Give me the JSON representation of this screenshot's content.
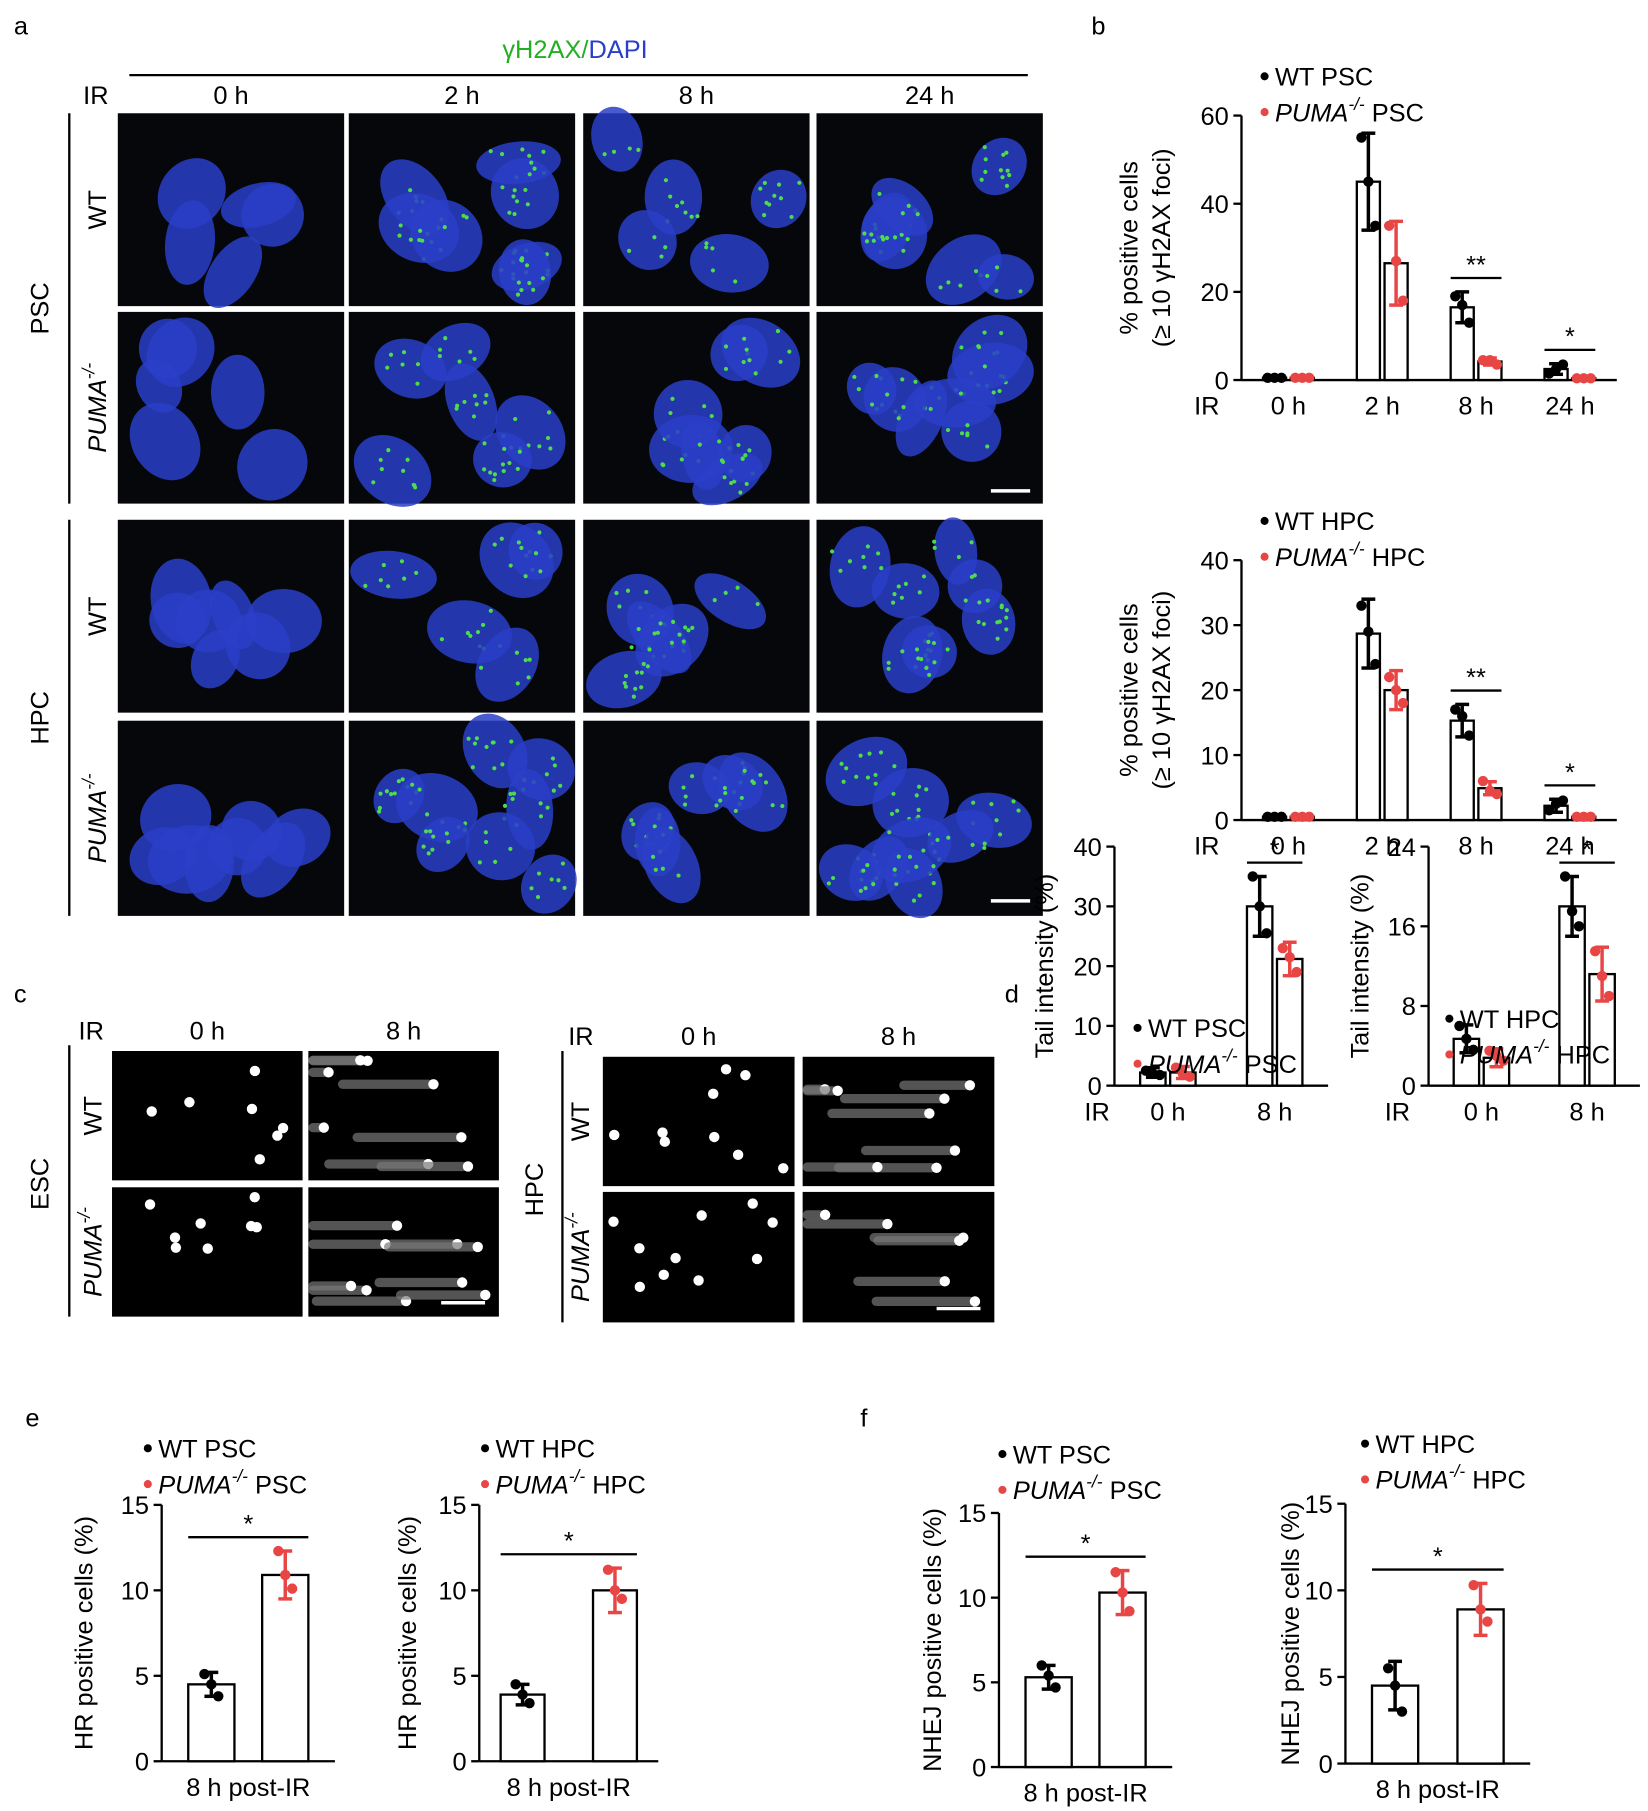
{
  "panel_labels": [
    "a",
    "b",
    "c",
    "d",
    "e",
    "f"
  ],
  "panel_a": {
    "stain": [
      "γH2AX",
      "/",
      "DAPI"
    ],
    "ir": "IR",
    "times": [
      "0 h",
      "2 h",
      "8 h",
      "24 h"
    ],
    "groups": [
      {
        "name": "PSC",
        "rows": [
          [
            "WT"
          ],
          [
            "PUMA",
            "-/-"
          ]
        ]
      },
      {
        "name": "HPC",
        "rows": [
          [
            "WT"
          ],
          [
            "PUMA",
            "-/-"
          ]
        ]
      }
    ]
  },
  "panel_c": [
    {
      "name": "ESC",
      "ir": "IR",
      "times": [
        "0 h",
        "8 h"
      ],
      "rows": [
        [
          "WT"
        ],
        [
          "PUMA",
          "-/-"
        ]
      ]
    },
    {
      "name": "HPC",
      "ir": "IR",
      "times": [
        "0 h",
        "8 h"
      ],
      "rows": [
        [
          "WT"
        ],
        [
          "PUMA",
          "-/-"
        ]
      ]
    }
  ],
  "chart_data": [
    {
      "type": "bar",
      "ylabel": [
        "% positive cells",
        "(≥ 10 γH2AX foci)"
      ],
      "xlabel": "IR",
      "categories": [
        "0 h",
        "2 h",
        "8 h",
        "24 h"
      ],
      "ylim": [
        0,
        60
      ],
      "yticks": [
        0,
        20,
        40,
        60
      ],
      "series": [
        {
          "name": "WT PSC",
          "color": "#000000",
          "values": [
            0.5,
            45,
            16.5,
            2.5
          ],
          "errors": [
            0.2,
            11,
            3.5,
            1.2
          ],
          "points": [
            [
              0.5,
              0.5,
              0.5
            ],
            [
              55,
              45,
              35
            ],
            [
              19,
              17,
              13
            ],
            [
              1.5,
              2.5,
              3.5
            ]
          ]
        },
        {
          "name": [
            "PUMA",
            "-/-",
            " PSC"
          ],
          "color": "#e84545",
          "values": [
            0.5,
            26.5,
            4.2,
            0.4
          ],
          "errors": [
            0.2,
            9.5,
            0.8,
            0.2
          ],
          "points": [
            [
              0.5,
              0.5,
              0.5
            ],
            [
              35,
              27,
              18
            ],
            [
              4.5,
              4.5,
              3.5
            ],
            [
              0.4,
              0.4,
              0.4
            ]
          ]
        }
      ],
      "annotations": [
        {
          "text": "**",
          "category": 2
        },
        {
          "text": "*",
          "category": 3
        }
      ]
    },
    {
      "type": "bar",
      "ylabel": [
        "% positive cells",
        "(≥ 10 γH2AX foci)"
      ],
      "xlabel": "IR",
      "categories": [
        "0 h",
        "2 h",
        "8 h",
        "24 h"
      ],
      "ylim": [
        0,
        40
      ],
      "yticks": [
        0,
        10,
        20,
        30,
        40
      ],
      "series": [
        {
          "name": "WT HPC",
          "color": "#000000",
          "values": [
            0.5,
            28.7,
            15.3,
            2.2
          ],
          "errors": [
            0.2,
            5.3,
            2.5,
            1
          ],
          "points": [
            [
              0.5,
              0.5,
              0.5
            ],
            [
              33,
              29,
              24
            ],
            [
              17,
              16,
              13
            ],
            [
              1.5,
              2.5,
              3
            ]
          ]
        },
        {
          "name": [
            "PUMA",
            "-/-",
            " HPC"
          ],
          "color": "#e84545",
          "values": [
            0.5,
            20,
            4.9,
            0.5
          ],
          "errors": [
            0.2,
            3,
            1,
            0.2
          ],
          "points": [
            [
              0.5,
              0.5,
              0.5
            ],
            [
              22,
              20,
              18
            ],
            [
              6,
              4.5,
              4
            ],
            [
              0.5,
              0.5,
              0.5
            ]
          ]
        }
      ],
      "annotations": [
        {
          "text": "**",
          "category": 2
        },
        {
          "text": "*",
          "category": 3
        }
      ]
    },
    {
      "type": "bar",
      "ylabel": [
        "Tail intensity (%)"
      ],
      "xlabel": "IR",
      "categories": [
        "0 h",
        "8 h"
      ],
      "ylim": [
        0,
        40
      ],
      "yticks": [
        0,
        10,
        20,
        30,
        40
      ],
      "series": [
        {
          "name": "WT PSC",
          "color": "#000000",
          "values": [
            2.2,
            30
          ],
          "errors": [
            0.8,
            5
          ],
          "points": [
            [
              2.5,
              2,
              1.8
            ],
            [
              35,
              30,
              25.5
            ]
          ]
        },
        {
          "name": [
            "PUMA",
            "-/-",
            " PSC"
          ],
          "color": "#e84545",
          "values": [
            2.2,
            21.2
          ],
          "errors": [
            1,
            2.8
          ],
          "points": [
            [
              3,
              2,
              1.5
            ],
            [
              23,
              21.5,
              19
            ]
          ]
        }
      ],
      "annotations": [
        {
          "text": "*",
          "category": 1
        }
      ]
    },
    {
      "type": "bar",
      "ylabel": [
        "Tail intensity (%)"
      ],
      "xlabel": "IR",
      "categories": [
        "0 h",
        "8 h"
      ],
      "ylim": [
        0,
        24
      ],
      "yticks": [
        0,
        8,
        16,
        24
      ],
      "series": [
        {
          "name": "WT HPC",
          "color": "#000000",
          "values": [
            4.7,
            18
          ],
          "errors": [
            1.4,
            3
          ],
          "points": [
            [
              6,
              4.7,
              3.6
            ],
            [
              21,
              17.5,
              16
            ]
          ]
        },
        {
          "name": [
            "PUMA",
            "-/-",
            " HPC"
          ],
          "color": "#e84545",
          "values": [
            2.8,
            11.2
          ],
          "errors": [
            0.9,
            2.7
          ],
          "points": [
            [
              3.5,
              3,
              2.5
            ],
            [
              13.5,
              11,
              9
            ]
          ]
        }
      ],
      "annotations": [
        {
          "text": "*",
          "category": 1
        }
      ]
    },
    {
      "type": "bar",
      "ylabel": [
        "HR positive cells (%)"
      ],
      "categories": [
        "8 h post-IR"
      ],
      "ylim": [
        0,
        15
      ],
      "yticks": [
        0,
        5,
        10,
        15
      ],
      "series": [
        {
          "name": "WT PSC",
          "color": "#000000",
          "values": [
            4.5
          ],
          "errors": [
            0.7
          ],
          "points": [
            [
              5.1,
              4.5,
              3.8
            ]
          ]
        },
        {
          "name": [
            "PUMA",
            "-/-",
            " PSC"
          ],
          "color": "#e84545",
          "values": [
            10.9
          ],
          "errors": [
            1.4
          ],
          "points": [
            [
              12.3,
              10.9,
              10.1
            ]
          ]
        }
      ],
      "annotations": [
        {
          "text": "*",
          "category": 0
        }
      ]
    },
    {
      "type": "bar",
      "ylabel": [
        "HR positive cells (%)"
      ],
      "categories": [
        "8 h post-IR"
      ],
      "ylim": [
        0,
        15
      ],
      "yticks": [
        0,
        5,
        10,
        15
      ],
      "series": [
        {
          "name": "WT HPC",
          "color": "#000000",
          "values": [
            3.9
          ],
          "errors": [
            0.6
          ],
          "points": [
            [
              4.5,
              3.9,
              3.4
            ]
          ]
        },
        {
          "name": [
            "PUMA",
            "-/-",
            " HPC"
          ],
          "color": "#e84545",
          "values": [
            10
          ],
          "errors": [
            1.3
          ],
          "points": [
            [
              11.2,
              10,
              9.5
            ]
          ]
        }
      ],
      "annotations": [
        {
          "text": "*",
          "category": 0
        }
      ]
    },
    {
      "type": "bar",
      "ylabel": [
        "NHEJ positive cells (%)"
      ],
      "categories": [
        "8 h post-IR"
      ],
      "ylim": [
        0,
        15
      ],
      "yticks": [
        0,
        5,
        10,
        15
      ],
      "series": [
        {
          "name": "WT PSC",
          "color": "#000000",
          "values": [
            5.3
          ],
          "errors": [
            0.7
          ],
          "points": [
            [
              6,
              5.4,
              4.7
            ]
          ]
        },
        {
          "name": [
            "PUMA",
            "-/-",
            " PSC"
          ],
          "color": "#e84545",
          "values": [
            10.3
          ],
          "errors": [
            1.3
          ],
          "points": [
            [
              11.5,
              10.3,
              9.2
            ]
          ]
        }
      ],
      "annotations": [
        {
          "text": "*",
          "category": 0
        }
      ]
    },
    {
      "type": "bar",
      "ylabel": [
        "NHEJ positive cells (%)"
      ],
      "categories": [
        "8 h post-IR"
      ],
      "ylim": [
        0,
        15
      ],
      "yticks": [
        0,
        5,
        10,
        15
      ],
      "series": [
        {
          "name": "WT HPC",
          "color": "#000000",
          "values": [
            4.5
          ],
          "errors": [
            1.4
          ],
          "points": [
            [
              5.5,
              4.5,
              3
            ]
          ]
        },
        {
          "name": [
            "PUMA",
            "-/-",
            " HPC"
          ],
          "color": "#e84545",
          "values": [
            8.9
          ],
          "errors": [
            1.5
          ],
          "points": [
            [
              10.3,
              8.9,
              8.2
            ]
          ]
        }
      ],
      "annotations": [
        {
          "text": "*",
          "category": 0
        }
      ]
    }
  ]
}
